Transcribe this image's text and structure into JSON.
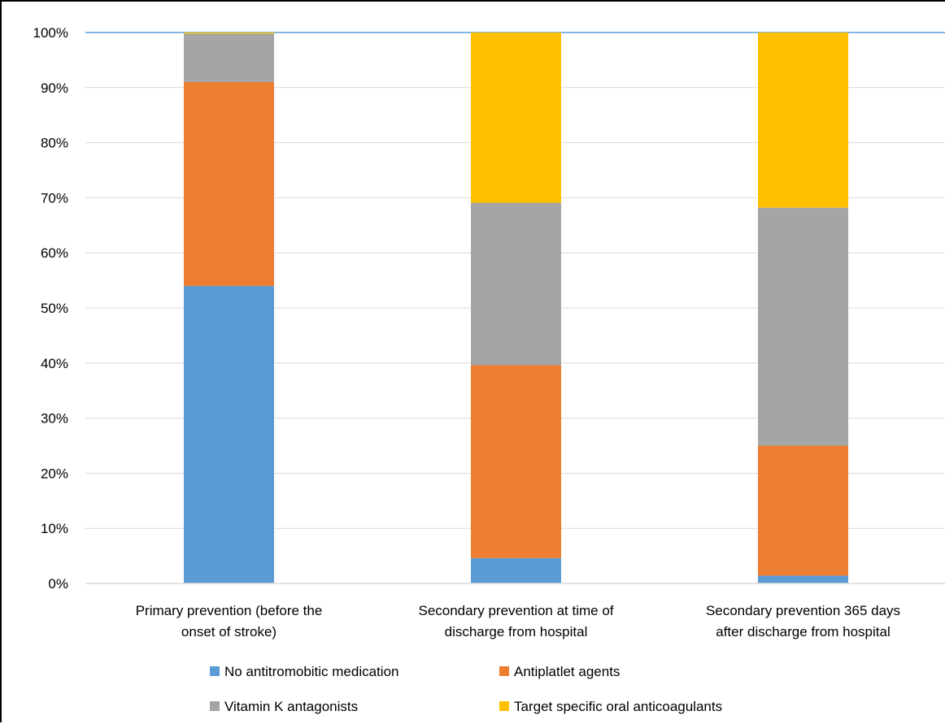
{
  "chart_data": {
    "type": "bar",
    "stacked": true,
    "categories": [
      [
        "Primary prevention (before the",
        "onset of stroke)"
      ],
      [
        "Secondary prevention at time of",
        "discharge from hospital"
      ],
      [
        "Secondary prevention 365 days",
        "after discharge from hospital"
      ]
    ],
    "series": [
      {
        "name": "No antitromobitic medication",
        "color": "#5B9BD5",
        "values": [
          54,
          4.6,
          1.4
        ]
      },
      {
        "name": "Antiplatlet agents",
        "color": "#ED7D31",
        "values": [
          37,
          35.0,
          23.6
        ]
      },
      {
        "name": "Vitamin K antagonists",
        "color": "#A5A5A5",
        "values": [
          8.8,
          29.5,
          43.2
        ]
      },
      {
        "name": "Target specific oral anticoagulants",
        "color": "#FFC000",
        "values": [
          0.2,
          30.9,
          31.8
        ]
      }
    ],
    "yticks": [
      "0%",
      "10%",
      "20%",
      "30%",
      "40%",
      "50%",
      "60%",
      "70%",
      "80%",
      "90%",
      "100%"
    ],
    "ylim": [
      0,
      100
    ],
    "grid": true,
    "legend_position": "bottom"
  }
}
